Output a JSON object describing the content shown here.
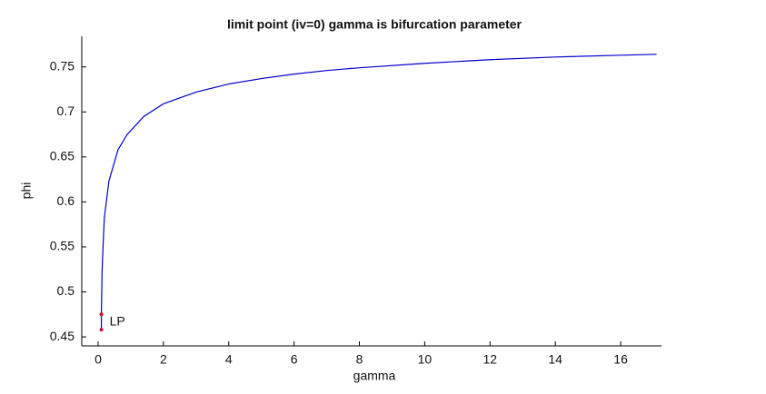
{
  "chart_data": {
    "type": "line",
    "title": "limit point (iv=0) gamma is bifurcation parameter",
    "xlabel": "gamma",
    "ylabel": "phi",
    "series": [
      {
        "name": "branch",
        "color": "#0000cc",
        "x": [
          0.1,
          0.1,
          0.12,
          0.15,
          0.19,
          0.33,
          0.61,
          0.89,
          1.4,
          2,
          3,
          4,
          5,
          6,
          7,
          8,
          10,
          12,
          14,
          16,
          17.1
        ],
        "values": [
          0.458,
          0.475,
          0.52,
          0.55,
          0.582,
          0.623,
          0.658,
          0.675,
          0.695,
          0.709,
          0.722,
          0.731,
          0.737,
          0.742,
          0.746,
          0.749,
          0.754,
          0.758,
          0.761,
          0.763,
          0.764
        ]
      }
    ],
    "markers": {
      "color": "#dd0033",
      "x": [
        0.1,
        0.1
      ],
      "values": [
        0.475,
        0.458
      ],
      "label": "LP"
    },
    "xlim": [
      -0.5,
      17.25
    ],
    "ylim": [
      0.44,
      0.784
    ],
    "xticks": [
      0,
      2,
      4,
      6,
      8,
      10,
      12,
      14,
      16
    ],
    "yticks": [
      0.45,
      0.5,
      0.55,
      0.6,
      0.65,
      0.7,
      0.75
    ]
  }
}
